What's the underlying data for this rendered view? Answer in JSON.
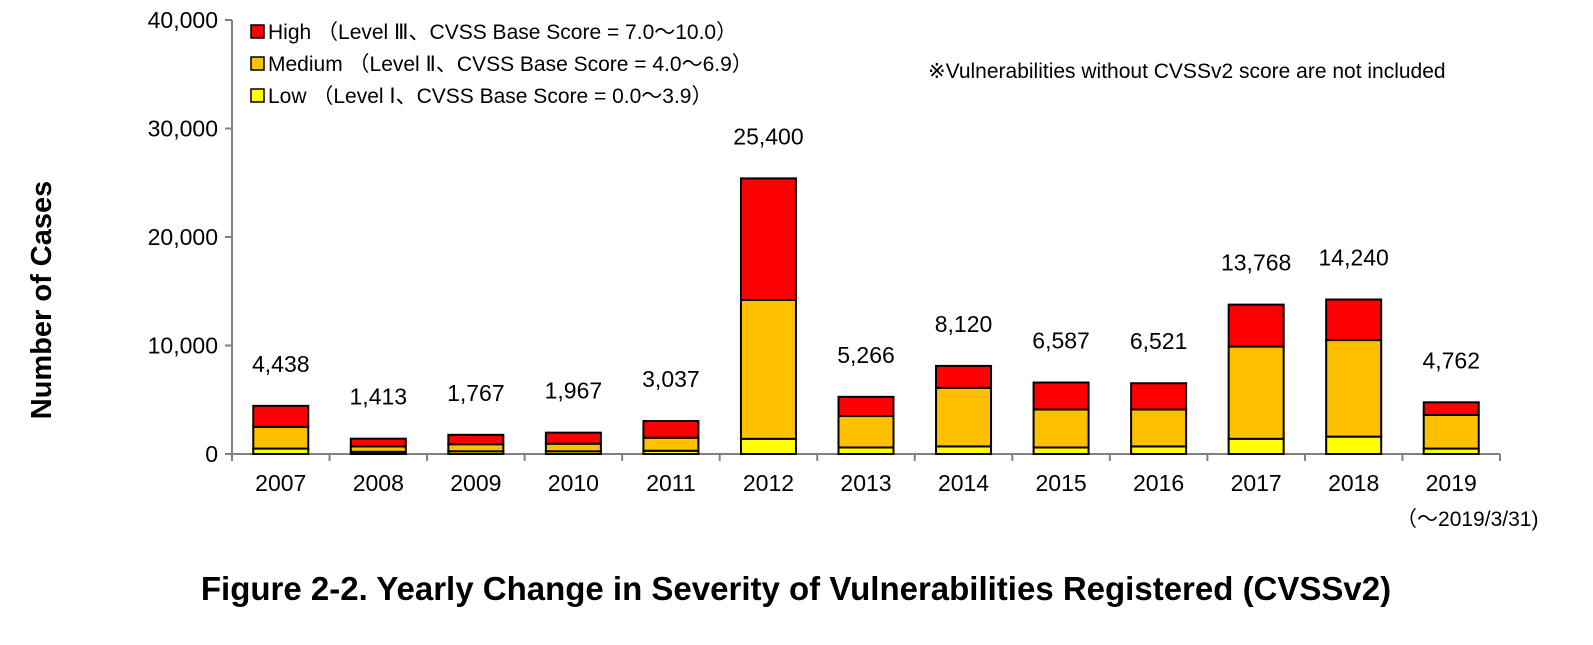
{
  "chart_data": {
    "type": "bar",
    "stacked": true,
    "title": "Figure 2-2.  Yearly Change in Severity of Vulnerabilities Registered (CVSSv2)",
    "ylabel": "Number of Cases",
    "xlabel": "",
    "ylim": [
      0,
      40000
    ],
    "yticks": [
      "0",
      "10,000",
      "20,000",
      "30,000",
      "40,000"
    ],
    "grid": false,
    "legend_position": "top-left",
    "categories": [
      "2007",
      "2008",
      "2009",
      "2010",
      "2011",
      "2012",
      "2013",
      "2014",
      "2015",
      "2016",
      "2017",
      "2018",
      "2019"
    ],
    "category_sublabel": {
      "category": "2019",
      "text": "（〜2019/3/31)"
    },
    "series": [
      {
        "name": "Low （Level Ⅰ、CVSS Base Score = 0.0〜3.9）",
        "color": "#ffff00",
        "values": [
          500,
          200,
          250,
          250,
          300,
          1400,
          600,
          700,
          600,
          700,
          1400,
          1600,
          500
        ]
      },
      {
        "name": "Medium （Level Ⅱ、CVSS Base Score = 4.0〜6.9）",
        "color": "#ffc000",
        "values": [
          2000,
          500,
          650,
          700,
          1200,
          12800,
          2900,
          5400,
          3500,
          3400,
          8500,
          8900,
          3100
        ]
      },
      {
        "name": "High （Level Ⅲ、CVSS Base Score = 7.0〜10.0）",
        "color": "#ff0000",
        "values": [
          1938,
          713,
          867,
          1017,
          1537,
          11200,
          1766,
          2020,
          2487,
          2421,
          3868,
          3740,
          1162
        ]
      }
    ],
    "totals": [
      "4,438",
      "1,413",
      "1,767",
      "1,967",
      "3,037",
      "25,400",
      "5,266",
      "8,120",
      "6,587",
      "6,521",
      "13,768",
      "14,240",
      "4,762"
    ],
    "annotation": "※Vulnerabilities without CVSSv2 score are not included"
  }
}
